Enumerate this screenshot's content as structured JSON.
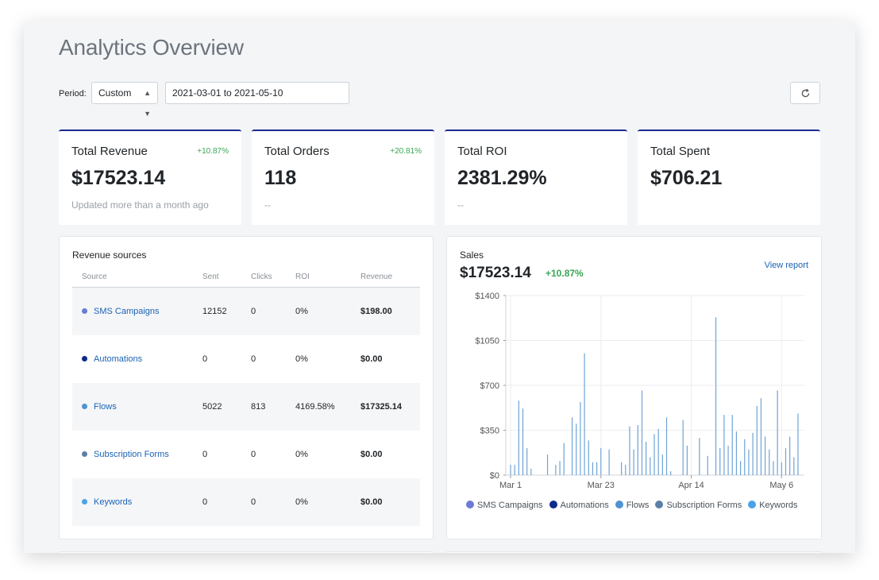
{
  "page": {
    "title": "Analytics Overview"
  },
  "filters": {
    "period_label": "Period:",
    "period_value": "Custom",
    "date_range": "2021-03-01 to 2021-05-10",
    "refresh_icon": "refresh-icon"
  },
  "kpis": [
    {
      "title": "Total Revenue",
      "change": "+10.87%",
      "value": "$17523.14",
      "sub": "Updated more than a month ago"
    },
    {
      "title": "Total Orders",
      "change": "+20.81%",
      "value": "118",
      "sub": "--"
    },
    {
      "title": "Total ROI",
      "change": "",
      "value": "2381.29%",
      "sub": "--"
    },
    {
      "title": "Total Spent",
      "change": "",
      "value": "$706.21",
      "sub": ""
    }
  ],
  "revenue_sources": {
    "title": "Revenue sources",
    "columns": [
      "Source",
      "Sent",
      "Clicks",
      "ROI",
      "Revenue"
    ],
    "rows": [
      {
        "source": "SMS Campaigns",
        "sent": "12152",
        "clicks": "0",
        "roi": "0%",
        "revenue": "$198.00",
        "color": "#6c7bd4"
      },
      {
        "source": "Automations",
        "sent": "0",
        "clicks": "0",
        "roi": "0%",
        "revenue": "$0.00",
        "color": "#0d2a8c"
      },
      {
        "source": "Flows",
        "sent": "5022",
        "clicks": "813",
        "roi": "4169.58%",
        "revenue": "$17325.14",
        "color": "#4f93d3"
      },
      {
        "source": "Subscription Forms",
        "sent": "0",
        "clicks": "0",
        "roi": "0%",
        "revenue": "$0.00",
        "color": "#5b7fa6"
      },
      {
        "source": "Keywords",
        "sent": "0",
        "clicks": "0",
        "roi": "0%",
        "revenue": "$0.00",
        "color": "#4aa3e8"
      }
    ]
  },
  "sales": {
    "title": "Sales",
    "value": "$17523.14",
    "change": "+10.87%",
    "view_report": "View report",
    "legend": [
      {
        "name": "SMS Campaigns",
        "color": "#6c7bd4"
      },
      {
        "name": "Automations",
        "color": "#0d2a8c"
      },
      {
        "name": "Flows",
        "color": "#4f93d3"
      },
      {
        "name": "Subscription Forms",
        "color": "#5b7fa6"
      },
      {
        "name": "Keywords",
        "color": "#4aa3e8"
      }
    ]
  },
  "chart_data": {
    "type": "bar",
    "x_start": "2021-03-01",
    "x_end": "2021-05-10",
    "xticks": [
      "Mar 1",
      "Mar 23",
      "Apr 14",
      "May 6"
    ],
    "yticks": [
      "$0",
      "$350",
      "$700",
      "$1050",
      "$1400"
    ],
    "ylim": [
      0,
      1400
    ],
    "grid": true,
    "bar_color": "#6fa3d6",
    "series": [
      {
        "values": [
          [
            "2021-03-01",
            80
          ],
          [
            "2021-03-02",
            80
          ],
          [
            "2021-03-03",
            580
          ],
          [
            "2021-03-04",
            520
          ],
          [
            "2021-03-05",
            210
          ],
          [
            "2021-03-06",
            50
          ],
          [
            "2021-03-10",
            160
          ],
          [
            "2021-03-12",
            80
          ],
          [
            "2021-03-13",
            110
          ],
          [
            "2021-03-14",
            250
          ],
          [
            "2021-03-16",
            450
          ],
          [
            "2021-03-17",
            400
          ],
          [
            "2021-03-18",
            570
          ],
          [
            "2021-03-19",
            950
          ],
          [
            "2021-03-20",
            270
          ],
          [
            "2021-03-21",
            100
          ],
          [
            "2021-03-22",
            100
          ],
          [
            "2021-03-23",
            210
          ],
          [
            "2021-03-25",
            200
          ],
          [
            "2021-03-28",
            100
          ],
          [
            "2021-03-29",
            80
          ],
          [
            "2021-03-30",
            380
          ],
          [
            "2021-03-31",
            200
          ],
          [
            "2021-04-01",
            390
          ],
          [
            "2021-04-02",
            660
          ],
          [
            "2021-04-03",
            260
          ],
          [
            "2021-04-04",
            140
          ],
          [
            "2021-04-05",
            320
          ],
          [
            "2021-04-06",
            360
          ],
          [
            "2021-04-07",
            160
          ],
          [
            "2021-04-08",
            450
          ],
          [
            "2021-04-09",
            30
          ],
          [
            "2021-04-12",
            430
          ],
          [
            "2021-04-13",
            230
          ],
          [
            "2021-04-16",
            290
          ],
          [
            "2021-04-18",
            150
          ],
          [
            "2021-04-20",
            1230
          ],
          [
            "2021-04-21",
            210
          ],
          [
            "2021-04-22",
            470
          ],
          [
            "2021-04-23",
            230
          ],
          [
            "2021-04-24",
            470
          ],
          [
            "2021-04-25",
            340
          ],
          [
            "2021-04-26",
            110
          ],
          [
            "2021-04-27",
            280
          ],
          [
            "2021-04-28",
            200
          ],
          [
            "2021-04-29",
            330
          ],
          [
            "2021-04-30",
            540
          ],
          [
            "2021-05-01",
            600
          ],
          [
            "2021-05-02",
            300
          ],
          [
            "2021-05-03",
            200
          ],
          [
            "2021-05-04",
            110
          ],
          [
            "2021-05-05",
            660
          ],
          [
            "2021-05-06",
            100
          ],
          [
            "2021-05-07",
            210
          ],
          [
            "2021-05-08",
            300
          ],
          [
            "2021-05-09",
            140
          ],
          [
            "2021-05-10",
            480
          ]
        ]
      }
    ]
  }
}
